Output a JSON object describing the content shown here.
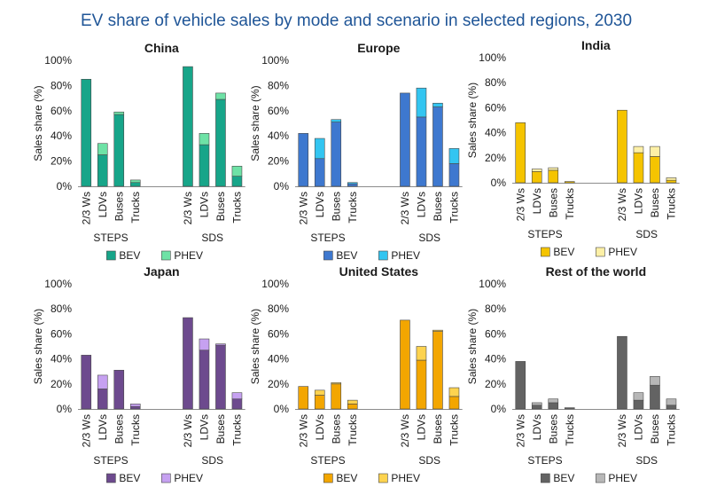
{
  "title": "EV share of vehicle sales by mode and scenario in selected regions, 2030",
  "chart_data": [
    {
      "type": "bar",
      "stacked": true,
      "title": "China",
      "ylabel": "Sales share (%)",
      "ylim": [
        0,
        100
      ],
      "yticks": [
        "0%",
        "20%",
        "40%",
        "60%",
        "80%",
        "100%"
      ],
      "groups": [
        "STEPS",
        "SDS"
      ],
      "categories": [
        "2/3 Ws",
        "LDVs",
        "Buses",
        "Trucks"
      ],
      "colors": {
        "BEV": "#17a589",
        "PHEV": "#6ee2a6"
      },
      "legend": "bottom",
      "series": [
        {
          "name": "BEV",
          "values": [
            [
              85,
              25,
              57,
              3
            ],
            [
              95,
              33,
              69,
              8
            ]
          ]
        },
        {
          "name": "PHEV",
          "values": [
            [
              0,
              9,
              2,
              2
            ],
            [
              0,
              9,
              5,
              8
            ]
          ]
        }
      ]
    },
    {
      "type": "bar",
      "stacked": true,
      "title": "Europe",
      "ylabel": "Sales share (%)",
      "ylim": [
        0,
        100
      ],
      "yticks": [
        "0%",
        "20%",
        "40%",
        "60%",
        "80%",
        "100%"
      ],
      "groups": [
        "STEPS",
        "SDS"
      ],
      "categories": [
        "2/3 Ws",
        "LDVs",
        "Buses",
        "Trucks"
      ],
      "colors": {
        "BEV": "#3e78cf",
        "PHEV": "#33c5f1"
      },
      "legend": "bottom",
      "series": [
        {
          "name": "BEV",
          "values": [
            [
              42,
              22,
              51,
              2
            ],
            [
              74,
              55,
              63,
              18
            ]
          ]
        },
        {
          "name": "PHEV",
          "values": [
            [
              0,
              16,
              2,
              1
            ],
            [
              0,
              23,
              3,
              12
            ]
          ]
        }
      ]
    },
    {
      "type": "bar",
      "stacked": true,
      "title": "India",
      "ylabel": "Sales share (%)",
      "ylim": [
        0,
        100
      ],
      "yticks": [
        "0%",
        "20%",
        "40%",
        "60%",
        "80%",
        "100%"
      ],
      "groups": [
        "STEPS",
        "SDS"
      ],
      "categories": [
        "2/3 Ws",
        "LDVs",
        "Buses",
        "Trucks"
      ],
      "colors": {
        "BEV": "#f5c400",
        "PHEV": "#fdf0a6"
      },
      "legend": "bottom",
      "series": [
        {
          "name": "BEV",
          "values": [
            [
              48,
              9,
              10,
              1
            ],
            [
              58,
              24,
              21,
              2
            ]
          ]
        },
        {
          "name": "PHEV",
          "values": [
            [
              0,
              2,
              2,
              0
            ],
            [
              0,
              5,
              8,
              2
            ]
          ]
        }
      ]
    },
    {
      "type": "bar",
      "stacked": true,
      "title": "Japan",
      "ylabel": "Sales share (%)",
      "ylim": [
        0,
        100
      ],
      "yticks": [
        "0%",
        "20%",
        "40%",
        "60%",
        "80%",
        "100%"
      ],
      "groups": [
        "STEPS",
        "SDS"
      ],
      "categories": [
        "2/3 Ws",
        "LDVs",
        "Buses",
        "Trucks"
      ],
      "colors": {
        "BEV": "#6d4a8e",
        "PHEV": "#c6a1f1"
      },
      "legend": "bottom",
      "series": [
        {
          "name": "BEV",
          "values": [
            [
              43,
              16,
              31,
              2
            ],
            [
              73,
              47,
              51,
              8
            ]
          ]
        },
        {
          "name": "PHEV",
          "values": [
            [
              0,
              11,
              0,
              2
            ],
            [
              0,
              9,
              1,
              5
            ]
          ]
        }
      ]
    },
    {
      "type": "bar",
      "stacked": true,
      "title": "United States",
      "ylabel": "Sales share (%)",
      "ylim": [
        0,
        100
      ],
      "yticks": [
        "0%",
        "20%",
        "40%",
        "60%",
        "80%",
        "100%"
      ],
      "groups": [
        "STEPS",
        "SDS"
      ],
      "categories": [
        "2/3 Ws",
        "LDVs",
        "Buses",
        "Trucks"
      ],
      "colors": {
        "BEV": "#f3a600",
        "PHEV": "#fdd34f"
      },
      "legend": "bottom",
      "series": [
        {
          "name": "BEV",
          "values": [
            [
              18,
              11,
              20,
              4
            ],
            [
              71,
              39,
              62,
              10
            ]
          ]
        },
        {
          "name": "PHEV",
          "values": [
            [
              0,
              4,
              1,
              3
            ],
            [
              0,
              11,
              1,
              7
            ]
          ]
        }
      ]
    },
    {
      "type": "bar",
      "stacked": true,
      "title": "Rest of the world",
      "ylabel": "Sales share (%)",
      "ylim": [
        0,
        100
      ],
      "yticks": [
        "0%",
        "20%",
        "40%",
        "60%",
        "80%",
        "100%"
      ],
      "groups": [
        "STEPS",
        "SDS"
      ],
      "categories": [
        "2/3 Ws",
        "LDVs",
        "Buses",
        "Trucks"
      ],
      "colors": {
        "BEV": "#636363",
        "PHEV": "#b7b7b7"
      },
      "legend": "bottom",
      "series": [
        {
          "name": "BEV",
          "values": [
            [
              38,
              3,
              5,
              1
            ],
            [
              58,
              7,
              19,
              3
            ]
          ]
        },
        {
          "name": "PHEV",
          "values": [
            [
              0,
              2,
              3,
              0
            ],
            [
              0,
              6,
              7,
              5
            ]
          ]
        }
      ]
    }
  ]
}
